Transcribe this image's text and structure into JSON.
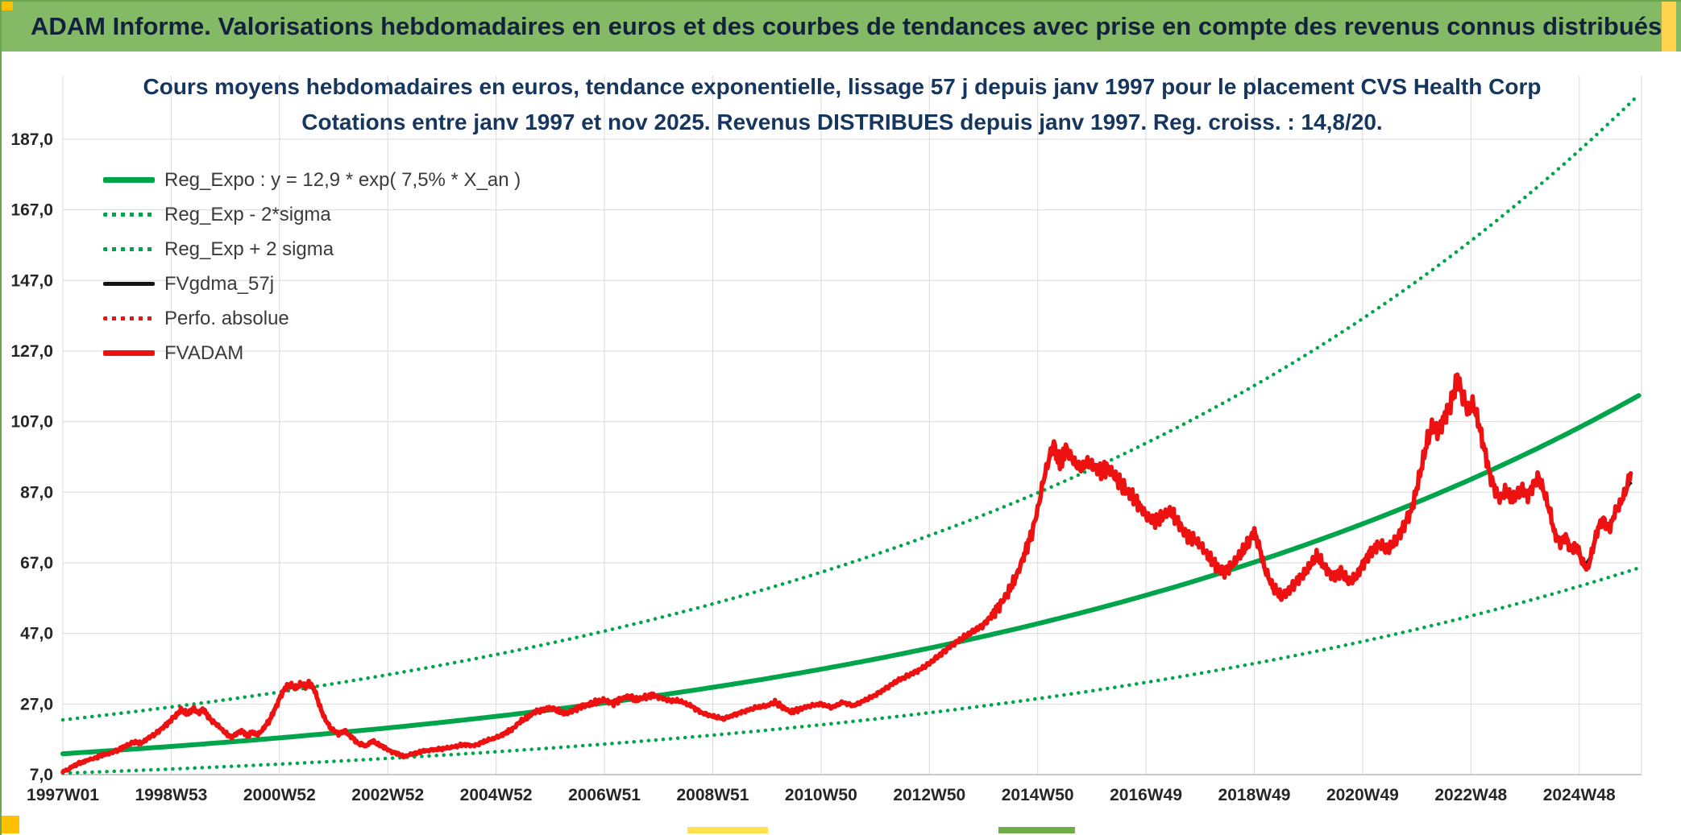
{
  "header": {
    "title": "ADAM Informe. Valorisations hebdomadaires en euros et des courbes de tendances avec prise en compte des revenus connus distribués"
  },
  "accents": {
    "yellow": "#ffc000",
    "header_green": "#84b966",
    "strip_green": "#70ad47"
  },
  "chart_data": {
    "type": "line",
    "title_line1": "Cours moyens hebdomadaires en euros, tendance exponentielle, lissage 57 j depuis janv 1997 pour le placement CVS Health Corp",
    "title_line2": "Cotations entre janv 1997 et nov 2025. Revenus DISTRIBUES depuis janv 1997. Reg. croiss. : 14,8/20.",
    "legend_position": "top-left",
    "grid": true,
    "colors": {
      "green": "#00a44a",
      "red": "#ee1111",
      "black": "#141414",
      "grid": "#d9d9d9",
      "navy": "#17365d"
    },
    "x_axis": {
      "min_year": 1997.0,
      "max_year": 2026.15,
      "ticks": [
        {
          "year": 1997.0,
          "label": "1997W01"
        },
        {
          "year": 1999.0,
          "label": "1998W53"
        },
        {
          "year": 2001.0,
          "label": "2000W52"
        },
        {
          "year": 2003.0,
          "label": "2002W52"
        },
        {
          "year": 2005.0,
          "label": "2004W52"
        },
        {
          "year": 2007.0,
          "label": "2006W51"
        },
        {
          "year": 2009.0,
          "label": "2008W51"
        },
        {
          "year": 2011.0,
          "label": "2010W50"
        },
        {
          "year": 2013.0,
          "label": "2012W50"
        },
        {
          "year": 2015.0,
          "label": "2014W50"
        },
        {
          "year": 2017.0,
          "label": "2016W49"
        },
        {
          "year": 2019.0,
          "label": "2018W49"
        },
        {
          "year": 2021.0,
          "label": "2020W49"
        },
        {
          "year": 2023.0,
          "label": "2022W48"
        },
        {
          "year": 2025.0,
          "label": "2024W48"
        }
      ]
    },
    "y_axis": {
      "min": 7,
      "max": 205,
      "tick_step": 20,
      "ticks": [
        {
          "v": 7,
          "label": "7,0"
        },
        {
          "v": 27,
          "label": "27,0"
        },
        {
          "v": 47,
          "label": "47,0"
        },
        {
          "v": 67,
          "label": "67,0"
        },
        {
          "v": 87,
          "label": "87,0"
        },
        {
          "v": 107,
          "label": "107,0"
        },
        {
          "v": 127,
          "label": "127,0"
        },
        {
          "v": 147,
          "label": "147,0"
        },
        {
          "v": 167,
          "label": "167,0"
        },
        {
          "v": 187,
          "label": "187,0"
        }
      ]
    },
    "series": [
      {
        "id": "reg_expo",
        "name": "Reg_Expo : y = 12,9 * exp( 7,5% *  X_an )",
        "type": "exp_formula",
        "a": 12.9,
        "annual_rate": 0.075,
        "color": "#00a44a",
        "style": "solid",
        "width": 6
      },
      {
        "id": "reg_minus",
        "name": "Reg_Exp - 2*sigma",
        "type": "exp_band",
        "factor": 0.573,
        "color": "#00a44a",
        "style": "dotted",
        "width": 4.5
      },
      {
        "id": "reg_plus",
        "name": "Reg_Exp + 2 sigma",
        "type": "exp_band",
        "factor": 1.745,
        "color": "#00a44a",
        "style": "dotted",
        "width": 4.5
      },
      {
        "id": "fvgdma",
        "name": "FVgdma_57j",
        "type": "smoothed_of_fvadam",
        "color": "#141414",
        "style": "solid",
        "width": 3.5
      },
      {
        "id": "perfo",
        "name": "Perfo. absolue",
        "type": "same_path_as_fvadam",
        "color": "#ee1111",
        "style": "dotted",
        "width": 3
      },
      {
        "id": "fvadam",
        "name": "FVADAM",
        "type": "points",
        "color": "#ee1111",
        "style": "solid",
        "width": 5.5,
        "points": [
          [
            1997.0,
            7.8
          ],
          [
            1997.1,
            8.5
          ],
          [
            1997.2,
            9.5
          ],
          [
            1997.3,
            10.2
          ],
          [
            1997.45,
            11.0
          ],
          [
            1997.6,
            11.8
          ],
          [
            1997.75,
            12.6
          ],
          [
            1997.9,
            13.2
          ],
          [
            1998.0,
            13.8
          ],
          [
            1998.15,
            15.0
          ],
          [
            1998.3,
            16.2
          ],
          [
            1998.45,
            16.0
          ],
          [
            1998.6,
            17.5
          ],
          [
            1998.75,
            19.0
          ],
          [
            1998.9,
            21.0
          ],
          [
            1999.0,
            22.5
          ],
          [
            1999.1,
            24.0
          ],
          [
            1999.2,
            25.5
          ],
          [
            1999.3,
            24.0
          ],
          [
            1999.4,
            25.8
          ],
          [
            1999.5,
            24.5
          ],
          [
            1999.6,
            25.5
          ],
          [
            1999.7,
            23.0
          ],
          [
            1999.85,
            21.0
          ],
          [
            2000.0,
            19.0
          ],
          [
            2000.1,
            17.5
          ],
          [
            2000.2,
            18.5
          ],
          [
            2000.3,
            19.5
          ],
          [
            2000.4,
            18.0
          ],
          [
            2000.5,
            19.0
          ],
          [
            2000.6,
            18.2
          ],
          [
            2000.7,
            20.0
          ],
          [
            2000.8,
            22.0
          ],
          [
            2000.9,
            25.0
          ],
          [
            2001.0,
            28.5
          ],
          [
            2001.1,
            31.5
          ],
          [
            2001.2,
            32.5
          ],
          [
            2001.3,
            31.5
          ],
          [
            2001.4,
            32.8
          ],
          [
            2001.5,
            31.8
          ],
          [
            2001.55,
            33.0
          ],
          [
            2001.65,
            31.0
          ],
          [
            2001.75,
            26.0
          ],
          [
            2001.85,
            22.5
          ],
          [
            2001.95,
            20.0
          ],
          [
            2002.1,
            18.5
          ],
          [
            2002.2,
            19.5
          ],
          [
            2002.3,
            18.0
          ],
          [
            2002.45,
            16.0
          ],
          [
            2002.6,
            15.0
          ],
          [
            2002.7,
            16.5
          ],
          [
            2002.85,
            15.5
          ],
          [
            2003.0,
            14.0
          ],
          [
            2003.15,
            13.0
          ],
          [
            2003.3,
            12.2
          ],
          [
            2003.45,
            12.8
          ],
          [
            2003.6,
            13.5
          ],
          [
            2003.8,
            14.0
          ],
          [
            2004.0,
            14.3
          ],
          [
            2004.2,
            14.8
          ],
          [
            2004.4,
            15.5
          ],
          [
            2004.6,
            15.2
          ],
          [
            2004.8,
            16.5
          ],
          [
            2005.0,
            17.5
          ],
          [
            2005.15,
            18.5
          ],
          [
            2005.3,
            20.0
          ],
          [
            2005.45,
            22.0
          ],
          [
            2005.6,
            23.5
          ],
          [
            2005.75,
            25.0
          ],
          [
            2005.9,
            25.5
          ],
          [
            2006.0,
            26.0
          ],
          [
            2006.15,
            25.0
          ],
          [
            2006.3,
            24.2
          ],
          [
            2006.45,
            25.5
          ],
          [
            2006.6,
            26.5
          ],
          [
            2006.75,
            27.0
          ],
          [
            2006.9,
            27.8
          ],
          [
            2007.0,
            28.2
          ],
          [
            2007.15,
            27.0
          ],
          [
            2007.3,
            28.5
          ],
          [
            2007.45,
            29.2
          ],
          [
            2007.6,
            28.0
          ],
          [
            2007.75,
            29.0
          ],
          [
            2007.9,
            29.5
          ],
          [
            2008.0,
            29.0
          ],
          [
            2008.2,
            28.0
          ],
          [
            2008.4,
            27.8
          ],
          [
            2008.6,
            26.5
          ],
          [
            2008.8,
            24.5
          ],
          [
            2009.0,
            23.5
          ],
          [
            2009.2,
            22.8
          ],
          [
            2009.4,
            24.0
          ],
          [
            2009.6,
            25.0
          ],
          [
            2009.8,
            26.0
          ],
          [
            2010.0,
            26.5
          ],
          [
            2010.15,
            27.5
          ],
          [
            2010.3,
            26.0
          ],
          [
            2010.45,
            24.8
          ],
          [
            2010.6,
            25.5
          ],
          [
            2010.8,
            26.5
          ],
          [
            2011.0,
            27.0
          ],
          [
            2011.2,
            26.0
          ],
          [
            2011.4,
            27.5
          ],
          [
            2011.6,
            26.5
          ],
          [
            2011.8,
            28.0
          ],
          [
            2012.0,
            29.5
          ],
          [
            2012.2,
            31.5
          ],
          [
            2012.4,
            33.5
          ],
          [
            2012.6,
            35.0
          ],
          [
            2012.8,
            36.5
          ],
          [
            2013.0,
            38.5
          ],
          [
            2013.2,
            41.0
          ],
          [
            2013.4,
            43.5
          ],
          [
            2013.6,
            45.5
          ],
          [
            2013.8,
            47.5
          ],
          [
            2014.0,
            49.5
          ],
          [
            2014.15,
            52.0
          ],
          [
            2014.3,
            55.0
          ],
          [
            2014.45,
            58.5
          ],
          [
            2014.6,
            63.0
          ],
          [
            2014.75,
            69.0
          ],
          [
            2014.9,
            76.0
          ],
          [
            2015.0,
            82.0
          ],
          [
            2015.1,
            90.0
          ],
          [
            2015.2,
            96.0
          ],
          [
            2015.3,
            101.0
          ],
          [
            2015.35,
            97.0
          ],
          [
            2015.45,
            95.0
          ],
          [
            2015.5,
            100.0
          ],
          [
            2015.6,
            97.5
          ],
          [
            2015.7,
            95.0
          ],
          [
            2015.8,
            93.5
          ],
          [
            2015.9,
            95.5
          ],
          [
            2016.0,
            95.0
          ],
          [
            2016.15,
            93.0
          ],
          [
            2016.3,
            94.0
          ],
          [
            2016.45,
            91.0
          ],
          [
            2016.6,
            88.0
          ],
          [
            2016.75,
            85.5
          ],
          [
            2016.9,
            83.0
          ],
          [
            2017.0,
            80.5
          ],
          [
            2017.15,
            78.5
          ],
          [
            2017.3,
            80.0
          ],
          [
            2017.45,
            82.0
          ],
          [
            2017.6,
            78.0
          ],
          [
            2017.75,
            75.0
          ],
          [
            2017.9,
            73.5
          ],
          [
            2018.0,
            72.0
          ],
          [
            2018.15,
            69.0
          ],
          [
            2018.3,
            66.0
          ],
          [
            2018.45,
            64.5
          ],
          [
            2018.6,
            66.5
          ],
          [
            2018.75,
            69.5
          ],
          [
            2018.9,
            73.0
          ],
          [
            2019.0,
            76.0
          ],
          [
            2019.1,
            71.0
          ],
          [
            2019.2,
            65.0
          ],
          [
            2019.35,
            60.0
          ],
          [
            2019.5,
            57.5
          ],
          [
            2019.65,
            59.5
          ],
          [
            2019.8,
            62.0
          ],
          [
            2019.9,
            63.5
          ],
          [
            2020.0,
            65.5
          ],
          [
            2020.15,
            69.0
          ],
          [
            2020.3,
            66.0
          ],
          [
            2020.45,
            63.0
          ],
          [
            2020.6,
            64.5
          ],
          [
            2020.75,
            61.5
          ],
          [
            2020.9,
            63.5
          ],
          [
            2021.0,
            66.5
          ],
          [
            2021.15,
            70.0
          ],
          [
            2021.3,
            72.5
          ],
          [
            2021.45,
            70.5
          ],
          [
            2021.6,
            73.0
          ],
          [
            2021.75,
            77.0
          ],
          [
            2021.9,
            82.0
          ],
          [
            2022.0,
            88.0
          ],
          [
            2022.1,
            95.0
          ],
          [
            2022.2,
            102.0
          ],
          [
            2022.3,
            106.0
          ],
          [
            2022.4,
            104.0
          ],
          [
            2022.5,
            108.0
          ],
          [
            2022.6,
            111.0
          ],
          [
            2022.7,
            116.0
          ],
          [
            2022.75,
            119.5
          ],
          [
            2022.85,
            114.0
          ],
          [
            2022.95,
            110.0
          ],
          [
            2023.05,
            112.0
          ],
          [
            2023.15,
            106.0
          ],
          [
            2023.25,
            99.0
          ],
          [
            2023.35,
            92.0
          ],
          [
            2023.45,
            87.5
          ],
          [
            2023.55,
            85.0
          ],
          [
            2023.65,
            88.0
          ],
          [
            2023.75,
            84.5
          ],
          [
            2023.85,
            86.5
          ],
          [
            2023.95,
            88.0
          ],
          [
            2024.05,
            86.0
          ],
          [
            2024.15,
            89.0
          ],
          [
            2024.25,
            91.5
          ],
          [
            2024.35,
            87.0
          ],
          [
            2024.45,
            82.0
          ],
          [
            2024.55,
            75.0
          ],
          [
            2024.65,
            72.5
          ],
          [
            2024.75,
            74.5
          ],
          [
            2024.85,
            70.5
          ],
          [
            2024.95,
            72.0
          ],
          [
            2025.05,
            67.5
          ],
          [
            2025.15,
            65.0
          ],
          [
            2025.25,
            71.0
          ],
          [
            2025.35,
            77.0
          ],
          [
            2025.45,
            79.5
          ],
          [
            2025.55,
            76.0
          ],
          [
            2025.65,
            81.0
          ],
          [
            2025.75,
            83.5
          ],
          [
            2025.85,
            87.0
          ],
          [
            2025.95,
            92.5
          ]
        ]
      }
    ]
  }
}
